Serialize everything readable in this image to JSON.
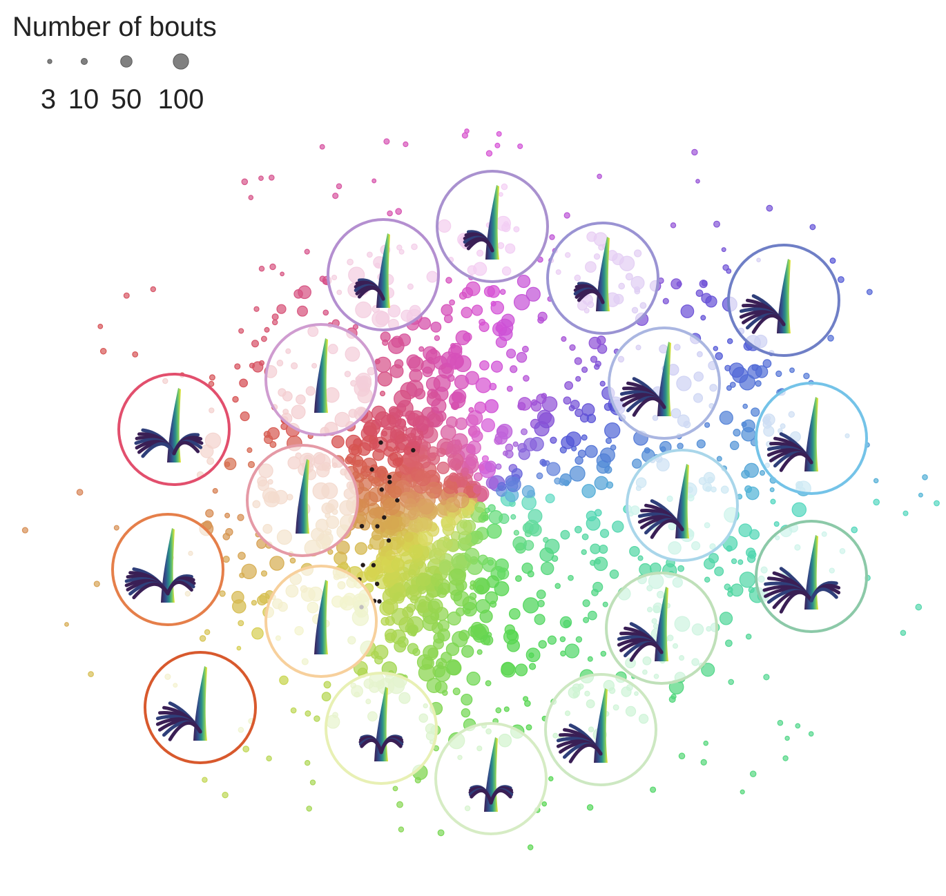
{
  "chart_data": {
    "type": "scatter",
    "title": "",
    "xlabel": "",
    "ylabel": "",
    "grid": false,
    "axes_visible": false,
    "legend": {
      "title": "Number of bouts",
      "placement": "top-left",
      "sizes": [
        3,
        10,
        50,
        100
      ],
      "labels": [
        "3",
        "10",
        "50",
        "100"
      ],
      "marker_color": "#808080"
    },
    "point_color_scheme": "rainbow by angle around centroid (red-orange-yellow-green-teal-blue-purple-pink)",
    "clusters": [
      {
        "id": 1,
        "color": "#b48fd0",
        "glyph": "tail-bend-left"
      },
      {
        "id": 2,
        "color": "#a991cf",
        "glyph": "tail-bend-left"
      },
      {
        "id": 3,
        "color": "#9a93d3",
        "glyph": "tail-bend-left"
      },
      {
        "id": 4,
        "color": "#6f7fc6",
        "glyph": "tail-fan-left"
      },
      {
        "id": 5,
        "color": "#cf9cd0",
        "glyph": "tail-straight"
      },
      {
        "id": 6,
        "color": "#aab6e1",
        "glyph": "tail-fan-left"
      },
      {
        "id": 7,
        "color": "#74c3e8",
        "glyph": "tail-fan-left"
      },
      {
        "id": 8,
        "color": "#e24f6d",
        "glyph": "tail-fan-right"
      },
      {
        "id": 9,
        "color": "#e59aa6",
        "glyph": "tail-straight"
      },
      {
        "id": 10,
        "color": "#a9d6ea",
        "glyph": "tail-fan-left"
      },
      {
        "id": 11,
        "color": "#e57f4a",
        "glyph": "tail-fan-symmetric"
      },
      {
        "id": 12,
        "color": "#8cc9a8",
        "glyph": "tail-fan-wide"
      },
      {
        "id": 13,
        "color": "#f7d09c",
        "glyph": "tail-straight"
      },
      {
        "id": 14,
        "color": "#bfe0b9",
        "glyph": "tail-fan-left"
      },
      {
        "id": 15,
        "color": "#d8592d",
        "glyph": "tail-fan-left"
      },
      {
        "id": 16,
        "color": "#e8f0b4",
        "glyph": "tail-symmetric"
      },
      {
        "id": 17,
        "color": "#cde8c2",
        "glyph": "tail-fan-left"
      },
      {
        "id": 18,
        "color": "#d6ecc4",
        "glyph": "tail-symmetric"
      }
    ]
  }
}
